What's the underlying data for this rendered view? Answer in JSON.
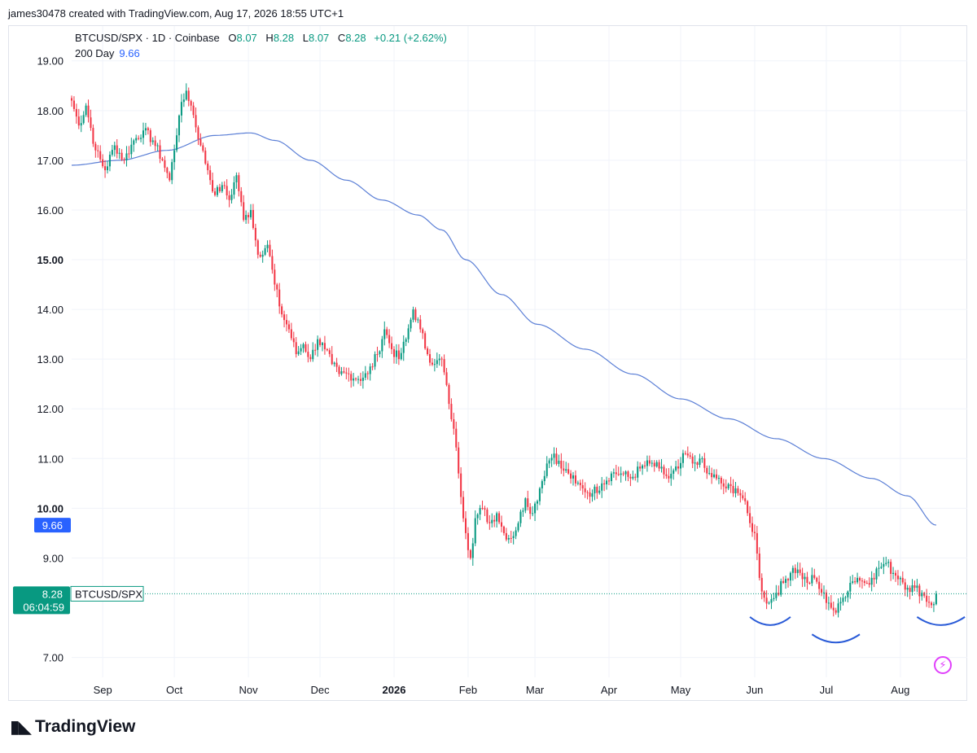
{
  "header": {
    "credit": "james30478 created with TradingView.com, Aug 17, 2026 18:55 UTC+1"
  },
  "legend": {
    "symbol": "BTCUSD/SPX · 1D · Coinbase",
    "open_label": "O",
    "open": "8.07",
    "high_label": "H",
    "high": "8.28",
    "low_label": "L",
    "low": "8.07",
    "close_label": "C",
    "close": "8.28",
    "change": "+0.21 (+2.62%)",
    "ma_name": "200 Day",
    "ma_value": "9.66"
  },
  "badges": {
    "ma_price": "9.66",
    "last_price": "8.28",
    "countdown": "06:04:59",
    "series_label": "BTCUSD/SPX"
  },
  "logo": {
    "text": "TradingView"
  },
  "colors": {
    "up": "#089981",
    "down": "#f23645",
    "ma": "#5b7fd6",
    "arc": "#2a5bd7",
    "ma_badge": "#2962ff",
    "price_badge": "#089981",
    "grid": "#f0f3fa"
  },
  "chart_data": {
    "type": "candlestick",
    "symbol": "BTCUSD/SPX",
    "interval": "1D",
    "ylim": [
      6.6,
      19.7
    ],
    "y_ticks": [
      {
        "value": 7,
        "label": "7.00"
      },
      {
        "value": 9,
        "label": "9.00"
      },
      {
        "value": 10,
        "label": "10.00",
        "major": true
      },
      {
        "value": 11,
        "label": "11.00"
      },
      {
        "value": 12,
        "label": "12.00"
      },
      {
        "value": 13,
        "label": "13.00"
      },
      {
        "value": 14,
        "label": "14.00"
      },
      {
        "value": 15,
        "label": "15.00",
        "major": true
      },
      {
        "value": 16,
        "label": "16.00"
      },
      {
        "value": 17,
        "label": "17.00"
      },
      {
        "value": 18,
        "label": "18.00"
      },
      {
        "value": 19,
        "label": "19.00"
      }
    ],
    "x_ticks": [
      {
        "day": 13,
        "label": "Sep"
      },
      {
        "day": 43,
        "label": "Oct"
      },
      {
        "day": 74,
        "label": "Nov"
      },
      {
        "day": 104,
        "label": "Dec"
      },
      {
        "day": 135,
        "label": "2026",
        "major": true
      },
      {
        "day": 166,
        "label": "Feb"
      },
      {
        "day": 194,
        "label": "Mar"
      },
      {
        "day": 225,
        "label": "Apr"
      },
      {
        "day": 255,
        "label": "May"
      },
      {
        "day": 286,
        "label": "Jun"
      },
      {
        "day": 316,
        "label": "Jul"
      },
      {
        "day": 347,
        "label": "Aug"
      }
    ],
    "x_range": [
      0,
      375
    ],
    "close_anchors": [
      [
        0,
        18.2
      ],
      [
        3,
        17.7
      ],
      [
        6,
        18.1
      ],
      [
        10,
        17.2
      ],
      [
        14,
        16.8
      ],
      [
        18,
        17.3
      ],
      [
        22,
        17.0
      ],
      [
        26,
        17.4
      ],
      [
        30,
        17.6
      ],
      [
        34,
        17.4
      ],
      [
        38,
        17.0
      ],
      [
        41,
        16.6
      ],
      [
        45,
        17.9
      ],
      [
        48,
        18.4
      ],
      [
        50,
        18.1
      ],
      [
        54,
        17.3
      ],
      [
        57,
        16.8
      ],
      [
        60,
        16.3
      ],
      [
        63,
        16.5
      ],
      [
        66,
        16.2
      ],
      [
        69,
        16.7
      ],
      [
        72,
        15.8
      ],
      [
        75,
        16.0
      ],
      [
        78,
        15.1
      ],
      [
        82,
        15.3
      ],
      [
        85,
        14.5
      ],
      [
        88,
        13.9
      ],
      [
        91,
        13.6
      ],
      [
        94,
        13.1
      ],
      [
        97,
        13.3
      ],
      [
        100,
        13.0
      ],
      [
        103,
        13.4
      ],
      [
        106,
        13.2
      ],
      [
        109,
        12.9
      ],
      [
        112,
        12.7
      ],
      [
        116,
        12.7
      ],
      [
        120,
        12.6
      ],
      [
        124,
        12.7
      ],
      [
        128,
        13.1
      ],
      [
        131,
        13.6
      ],
      [
        134,
        13.2
      ],
      [
        137,
        13.0
      ],
      [
        140,
        13.4
      ],
      [
        143,
        14.0
      ],
      [
        146,
        13.6
      ],
      [
        149,
        13.1
      ],
      [
        152,
        12.9
      ],
      [
        155,
        13.0
      ],
      [
        158,
        12.1
      ],
      [
        160,
        11.6
      ],
      [
        162,
        10.7
      ],
      [
        165,
        9.5
      ],
      [
        167,
        9.0
      ],
      [
        169,
        9.8
      ],
      [
        172,
        10.0
      ],
      [
        175,
        9.7
      ],
      [
        178,
        9.9
      ],
      [
        181,
        9.5
      ],
      [
        184,
        9.4
      ],
      [
        187,
        9.7
      ],
      [
        190,
        10.2
      ],
      [
        193,
        9.9
      ],
      [
        196,
        10.4
      ],
      [
        199,
        10.9
      ],
      [
        202,
        11.1
      ],
      [
        205,
        10.8
      ],
      [
        208,
        10.7
      ],
      [
        211,
        10.5
      ],
      [
        214,
        10.4
      ],
      [
        218,
        10.3
      ],
      [
        222,
        10.5
      ],
      [
        226,
        10.7
      ],
      [
        230,
        10.7
      ],
      [
        234,
        10.6
      ],
      [
        238,
        10.8
      ],
      [
        242,
        10.9
      ],
      [
        246,
        10.8
      ],
      [
        250,
        10.6
      ],
      [
        254,
        10.8
      ],
      [
        257,
        11.1
      ],
      [
        260,
        10.9
      ],
      [
        263,
        11.0
      ],
      [
        266,
        10.7
      ],
      [
        270,
        10.6
      ],
      [
        274,
        10.4
      ],
      [
        278,
        10.4
      ],
      [
        281,
        10.2
      ],
      [
        284,
        9.7
      ],
      [
        286,
        9.5
      ],
      [
        288,
        8.6
      ],
      [
        290,
        8.2
      ],
      [
        292,
        8.1
      ],
      [
        295,
        8.3
      ],
      [
        298,
        8.5
      ],
      [
        302,
        8.8
      ],
      [
        305,
        8.7
      ],
      [
        308,
        8.5
      ],
      [
        311,
        8.6
      ],
      [
        314,
        8.3
      ],
      [
        317,
        8.1
      ],
      [
        320,
        7.9
      ],
      [
        323,
        8.2
      ],
      [
        326,
        8.5
      ],
      [
        329,
        8.6
      ],
      [
        332,
        8.5
      ],
      [
        335,
        8.6
      ],
      [
        338,
        8.8
      ],
      [
        341,
        8.9
      ],
      [
        344,
        8.7
      ],
      [
        347,
        8.6
      ],
      [
        350,
        8.4
      ],
      [
        353,
        8.4
      ],
      [
        356,
        8.3
      ],
      [
        359,
        8.1
      ],
      [
        361,
        8.07
      ],
      [
        362,
        8.28
      ]
    ],
    "ma_200": [
      [
        0,
        16.9
      ],
      [
        20,
        17.0
      ],
      [
        40,
        17.2
      ],
      [
        60,
        17.5
      ],
      [
        75,
        17.55
      ],
      [
        85,
        17.4
      ],
      [
        100,
        17.0
      ],
      [
        115,
        16.6
      ],
      [
        130,
        16.2
      ],
      [
        145,
        15.9
      ],
      [
        155,
        15.6
      ],
      [
        165,
        15.0
      ],
      [
        180,
        14.3
      ],
      [
        195,
        13.7
      ],
      [
        215,
        13.2
      ],
      [
        235,
        12.7
      ],
      [
        255,
        12.2
      ],
      [
        275,
        11.8
      ],
      [
        295,
        11.4
      ],
      [
        315,
        11.0
      ],
      [
        335,
        10.6
      ],
      [
        350,
        10.25
      ],
      [
        362,
        9.66
      ]
    ],
    "last_close": 8.28,
    "ma_last": 9.66,
    "arcs": [
      {
        "from_day": 284,
        "to_day": 301,
        "bottom": 7.65
      },
      {
        "from_day": 310,
        "to_day": 330,
        "bottom": 7.3
      },
      {
        "from_day": 354,
        "to_day": 374,
        "bottom": 7.65
      }
    ]
  }
}
